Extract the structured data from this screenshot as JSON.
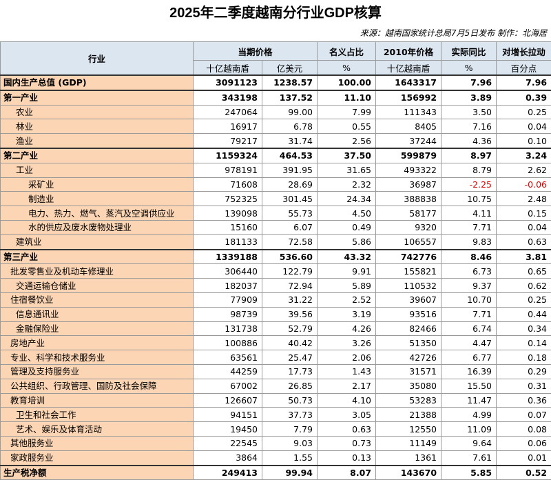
{
  "header": {
    "title": "2025年二季度越南分行业GDP核算",
    "source": "来源：越南国家统计总局7月5日发布  制作：北海居"
  },
  "table": {
    "columns": [
      "行业",
      "当期价格",
      "名义占比",
      "2010年价格",
      "实际同比",
      "对增长拉动"
    ],
    "units": [
      "十亿越南盾",
      "亿美元",
      "%",
      "十亿越南盾",
      "%",
      "百分点"
    ],
    "rows": [
      [
        "国内生产总值 (GDP)",
        "3091123",
        "1238.57",
        "100.00",
        "1643317",
        "7.96",
        "7.96"
      ],
      [
        "第一产业",
        "343198",
        "137.52",
        "11.10",
        "156992",
        "3.89",
        "0.39"
      ],
      [
        "农业",
        "247064",
        "99.00",
        "7.99",
        "111343",
        "3.50",
        "0.25"
      ],
      [
        "林业",
        "16917",
        "6.78",
        "0.55",
        "8405",
        "7.16",
        "0.04"
      ],
      [
        "渔业",
        "79217",
        "31.74",
        "2.56",
        "37244",
        "4.36",
        "0.10"
      ],
      [
        "第二产业",
        "1159324",
        "464.53",
        "37.50",
        "599879",
        "8.97",
        "3.24"
      ],
      [
        "工业",
        "978191",
        "391.95",
        "31.65",
        "493322",
        "8.79",
        "2.62"
      ],
      [
        "采矿业",
        "71608",
        "28.69",
        "2.32",
        "36987",
        "-2.25",
        "-0.06"
      ],
      [
        "制造业",
        "752325",
        "301.45",
        "24.34",
        "388838",
        "10.75",
        "2.48"
      ],
      [
        "电力、热力、燃气、蒸汽及空调供应业",
        "139098",
        "55.73",
        "4.50",
        "58177",
        "4.11",
        "0.15"
      ],
      [
        "水的供应及废水废物处理业",
        "15160",
        "6.07",
        "0.49",
        "9320",
        "7.71",
        "0.04"
      ],
      [
        "建筑业",
        "181133",
        "72.58",
        "5.86",
        "106557",
        "9.83",
        "0.63"
      ],
      [
        "第三产业",
        "1339188",
        "536.60",
        "43.32",
        "742776",
        "8.46",
        "3.81"
      ],
      [
        "批发零售业及机动车修理业",
        "306440",
        "122.79",
        "9.91",
        "155821",
        "6.73",
        "0.65"
      ],
      [
        "交通运输仓储业",
        "182037",
        "72.94",
        "5.89",
        "110532",
        "9.37",
        "0.62"
      ],
      [
        "住宿餐饮业",
        "77909",
        "31.22",
        "2.52",
        "39607",
        "10.70",
        "0.25"
      ],
      [
        "信息通讯业",
        "98739",
        "39.56",
        "3.19",
        "93516",
        "7.71",
        "0.44"
      ],
      [
        "金融保险业",
        "131738",
        "52.79",
        "4.26",
        "82466",
        "6.74",
        "0.34"
      ],
      [
        "房地产业",
        "100886",
        "40.42",
        "3.26",
        "51350",
        "4.47",
        "0.14"
      ],
      [
        "专业、科学和技术服务业",
        "63561",
        "25.47",
        "2.06",
        "42726",
        "6.77",
        "0.18"
      ],
      [
        "管理及支持服务业",
        "44259",
        "17.73",
        "1.43",
        "31571",
        "16.39",
        "0.29"
      ],
      [
        "公共组织、行政管理、国防及社会保障",
        "67002",
        "26.85",
        "2.17",
        "35080",
        "15.50",
        "0.31"
      ],
      [
        "教育培训",
        "126607",
        "50.73",
        "4.10",
        "53283",
        "11.47",
        "0.36"
      ],
      [
        "卫生和社会工作",
        "94151",
        "37.73",
        "3.05",
        "21388",
        "4.99",
        "0.07"
      ],
      [
        "艺术、娱乐及体育活动",
        "19450",
        "7.79",
        "0.63",
        "12550",
        "11.09",
        "0.08"
      ],
      [
        "其他服务业",
        "22545",
        "9.03",
        "0.73",
        "11149",
        "9.64",
        "0.06"
      ],
      [
        "家政服务业",
        "3864",
        "1.55",
        "0.13",
        "1361",
        "7.61",
        "0.01"
      ],
      [
        "生产税净额",
        "249413",
        "99.94",
        "8.07",
        "143670",
        "5.85",
        "0.52"
      ]
    ]
  }
}
